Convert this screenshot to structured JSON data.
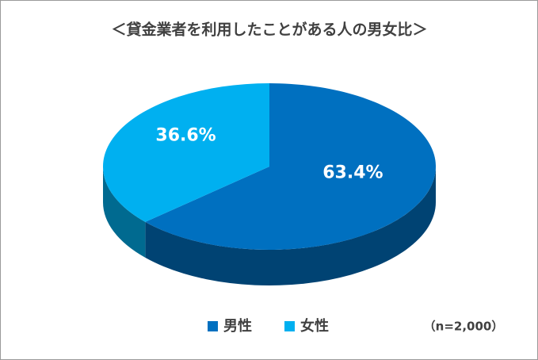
{
  "chart_data": {
    "type": "pie",
    "title": "＜貸金業者を利用したことがある人の男女比＞",
    "categories": [
      "男性",
      "女性"
    ],
    "values": [
      63.4,
      36.6
    ],
    "value_labels": [
      "63.4%",
      "36.6%"
    ],
    "colors": [
      "#0070c0",
      "#00b0f0"
    ],
    "note": "（n=2,000）"
  }
}
